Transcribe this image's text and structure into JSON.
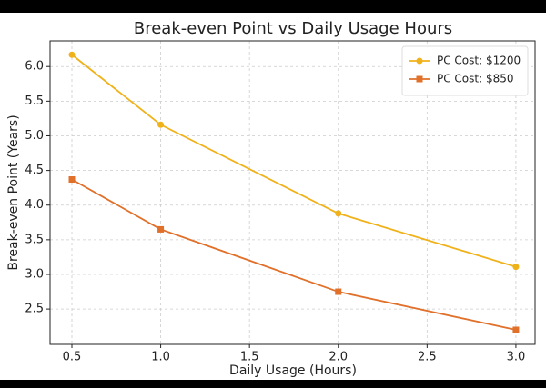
{
  "chart_data": {
    "type": "line",
    "title": "Break-even Point vs Daily Usage Hours",
    "x_label": "Daily Usage (Hours)",
    "y_label": "Break-even Point (Years)",
    "x": [
      0.5,
      1.0,
      2.0,
      3.0
    ],
    "series": [
      {
        "name": "PC Cost: $1200",
        "color": "#f0b21a",
        "marker": "circle",
        "values": [
          6.17,
          5.16,
          3.88,
          3.11
        ]
      },
      {
        "name": "PC Cost: $850",
        "color": "#e0702a",
        "marker": "square",
        "values": [
          4.37,
          3.65,
          2.75,
          2.2
        ]
      }
    ],
    "xlim": [
      0.377,
      3.108
    ],
    "ylim": [
      1.99,
      6.37
    ],
    "xticks": [
      0.5,
      {
        "value": 1,
        "label": "1.0"
      },
      1.5,
      {
        "value": 2,
        "label": "2.0"
      },
      2.5,
      {
        "value": 3,
        "label": "3.0"
      }
    ],
    "yticks": [
      2.5,
      {
        "value": 3,
        "label": "3.0"
      },
      3.5,
      {
        "value": 4,
        "label": "4.0"
      },
      4.5,
      {
        "value": 5,
        "label": "5.0"
      },
      5.5,
      {
        "value": 6,
        "label": "6.0"
      }
    ],
    "grid": true,
    "legend": "upper right"
  }
}
